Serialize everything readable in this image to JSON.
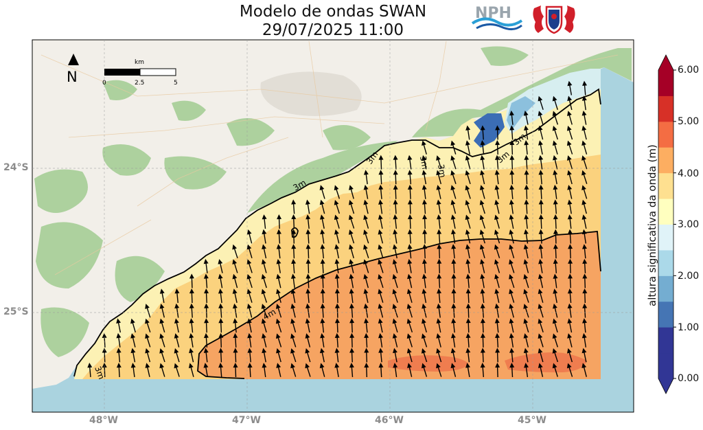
{
  "title_line1": "Modelo de ondas SWAN",
  "title_line2": "29/07/2025 11:00",
  "north_label": "N",
  "scalebar": {
    "unit": "km",
    "ticks": [
      "0",
      "2.5",
      "5"
    ]
  },
  "axes": {
    "x_ticks": [
      "48°W",
      "47°W",
      "46°W",
      "45°W"
    ],
    "y_ticks": [
      "24°S",
      "25°S"
    ]
  },
  "colorbar": {
    "label": "altura significativa da onda (m)",
    "ticks": [
      "0.00",
      "1.00",
      "2.00",
      "3.00",
      "4.00",
      "5.00",
      "6.00"
    ],
    "colors": [
      "#313695",
      "#4575b4",
      "#74add1",
      "#abd9e9",
      "#e0f3f8",
      "#ffffbf",
      "#fee090",
      "#fdae61",
      "#f46d43",
      "#d73027",
      "#a50026"
    ]
  },
  "contours": [
    "3m",
    "3m",
    "3m",
    "3m",
    "3m",
    "3m",
    "3m",
    "4m"
  ],
  "logo_text": "NPH",
  "colors": {
    "ocean": "#aad3df",
    "land": "#f2efe9",
    "forest": "#add19e",
    "wave_3_35": "#fcf1b4",
    "wave_35_4": "#fbd27e",
    "wave_4_45": "#f6a462",
    "wave_45_5": "#ef7d4f"
  }
}
